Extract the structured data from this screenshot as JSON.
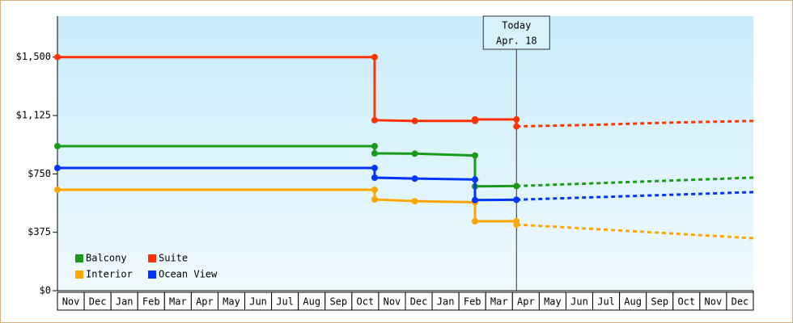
{
  "chart_data": {
    "type": "line",
    "categories": [
      "Nov",
      "Dec",
      "Jan",
      "Feb",
      "Mar",
      "Apr",
      "May",
      "Jun",
      "Jul",
      "Aug",
      "Sep",
      "Oct",
      "Nov",
      "Dec",
      "Jan",
      "Feb",
      "Mar",
      "Apr",
      "May",
      "Jun",
      "Jul",
      "Aug",
      "Sep",
      "Oct",
      "Nov",
      "Dec"
    ],
    "xlim": [
      0,
      26
    ],
    "ylim": [
      0,
      1763
    ],
    "yticks": [
      {
        "value": 0,
        "label": "$0"
      },
      {
        "value": 375,
        "label": "$375"
      },
      {
        "value": 750,
        "label": "$750"
      },
      {
        "value": 1125,
        "label": "$1,125"
      },
      {
        "value": 1500,
        "label": "$1,500"
      }
    ],
    "legend": "lower left",
    "today": {
      "x": 17.15,
      "label": [
        "Today",
        "Apr. 18"
      ]
    },
    "series": [
      {
        "name": "Balcony",
        "color": "#1a9a1a",
        "x": [
          0,
          11.85,
          11.85,
          13.35,
          15.6,
          15.6,
          17.15
        ],
        "values": [
          928,
          928,
          882,
          880,
          868,
          670,
          672
        ],
        "forecast": {
          "x": [
            17.15,
            26
          ],
          "values": [
            672,
            726
          ]
        }
      },
      {
        "name": "Suite",
        "color": "#ff3300",
        "x": [
          0,
          11.85,
          11.85,
          13.35,
          15.6,
          15.6,
          17.15,
          17.15
        ],
        "values": [
          1500,
          1500,
          1095,
          1090,
          1090,
          1100,
          1100,
          1055
        ],
        "forecast": {
          "x": [
            17.15,
            20,
            23,
            26
          ],
          "values": [
            1055,
            1065,
            1080,
            1090
          ]
        }
      },
      {
        "name": "Interior",
        "color": "#ffa500",
        "x": [
          0,
          11.85,
          11.85,
          13.35,
          15.6,
          15.6,
          17.15,
          17.15
        ],
        "values": [
          648,
          648,
          586,
          575,
          568,
          446,
          446,
          425
        ],
        "forecast": {
          "x": [
            17.15,
            26
          ],
          "values": [
            425,
            337
          ]
        }
      },
      {
        "name": "Ocean View",
        "color": "#0033ff",
        "x": [
          0,
          11.85,
          11.85,
          13.35,
          15.6,
          15.6,
          17.15
        ],
        "values": [
          788,
          788,
          726,
          720,
          714,
          582,
          584
        ],
        "forecast": {
          "x": [
            17.15,
            26
          ],
          "values": [
            584,
            633
          ]
        }
      }
    ]
  }
}
